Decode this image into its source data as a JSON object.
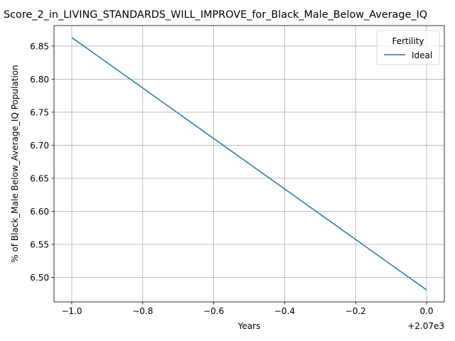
{
  "chart_data": {
    "type": "line",
    "title": "Score_2_in_LIVING_STANDARDS_WILL_IMPROVE_for_Black_Male_Below_Average_IQ",
    "xlabel": "Years",
    "ylabel": "% of Black_Male Below_Average_IQ Population",
    "x_offset_label": "+2.07e3",
    "x_ticks": [
      "−1.0",
      "−0.8",
      "−0.6",
      "−0.4",
      "−0.2",
      "0.0"
    ],
    "x_tick_values": [
      -1.0,
      -0.8,
      -0.6,
      -0.4,
      -0.2,
      0.0
    ],
    "y_ticks": [
      "6.50",
      "6.55",
      "6.60",
      "6.65",
      "6.70",
      "6.75",
      "6.80",
      "6.85"
    ],
    "y_tick_values": [
      6.5,
      6.55,
      6.6,
      6.65,
      6.7,
      6.75,
      6.8,
      6.85
    ],
    "xlim": [
      -1.05,
      0.05
    ],
    "ylim": [
      6.4629,
      6.8811
    ],
    "grid": true,
    "legend": {
      "title": "Fertility",
      "placement": "top-right"
    },
    "series": [
      {
        "name": "Ideal",
        "color": "#1f77b4",
        "x": [
          -1.0,
          0.0
        ],
        "y": [
          6.863,
          6.481
        ]
      }
    ]
  }
}
